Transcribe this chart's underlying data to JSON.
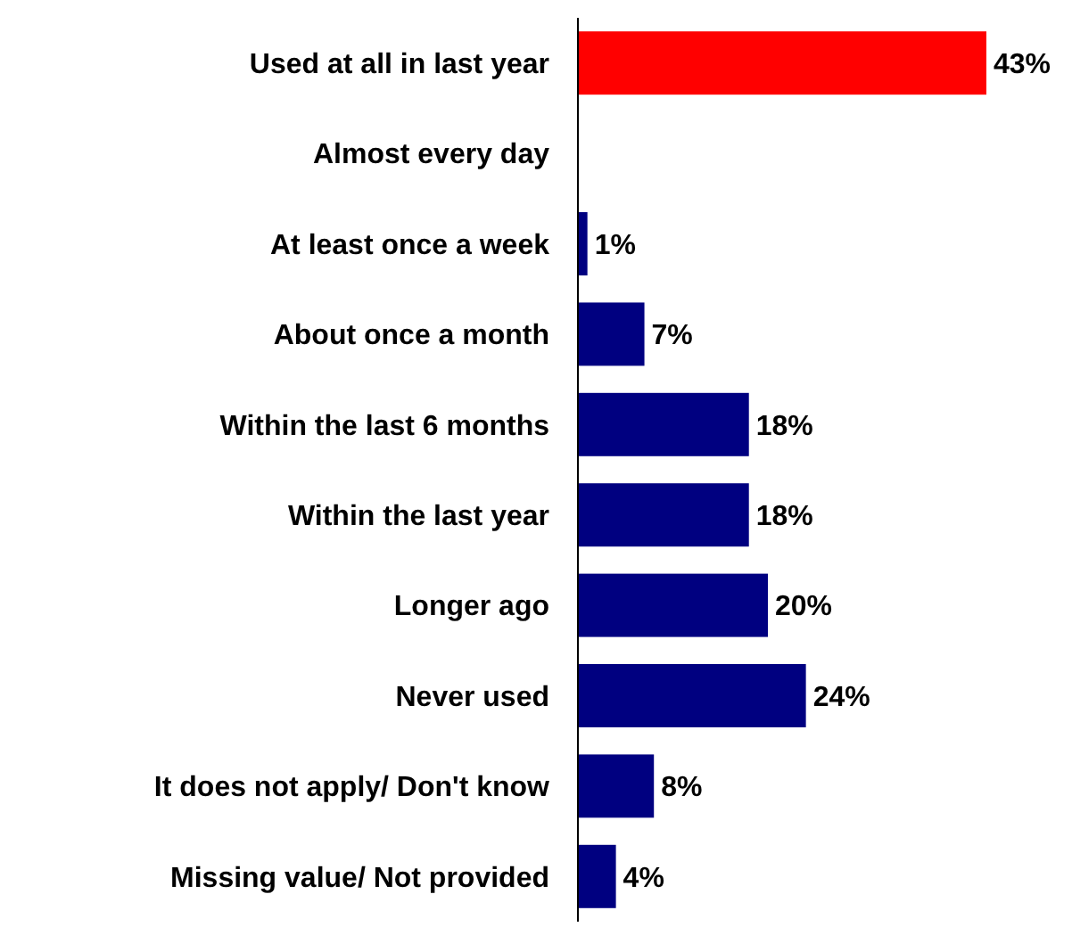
{
  "chart_data": {
    "type": "bar",
    "orientation": "horizontal",
    "categories": [
      "Used at all in last year",
      "Almost every day",
      "At least once a week",
      "About once a month",
      "Within the last 6 months",
      "Within the last year",
      "Longer ago",
      "Never used",
      "It does not apply/ Don't know",
      "Missing value/ Not provided"
    ],
    "values": [
      43,
      null,
      1,
      7,
      18,
      18,
      20,
      24,
      8,
      4
    ],
    "colors": [
      "#ff0000",
      null,
      "#000080",
      "#000080",
      "#000080",
      "#000080",
      "#000080",
      "#000080",
      "#000080",
      "#000080"
    ],
    "value_labels": [
      "43%",
      null,
      "1%",
      "7%",
      "18%",
      "18%",
      "20%",
      "24%",
      "8%",
      "4%"
    ]
  }
}
